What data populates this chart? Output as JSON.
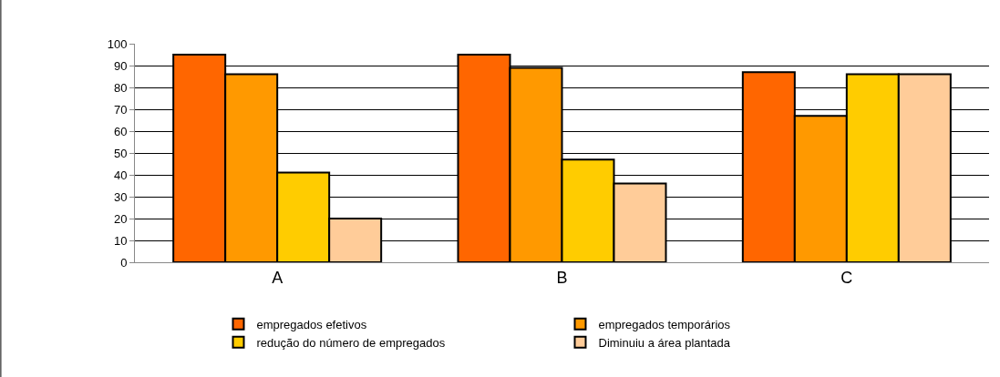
{
  "chart_data": {
    "type": "bar",
    "categories": [
      "A",
      "B",
      "C"
    ],
    "series": [
      {
        "name": "empregados efetivos",
        "color": "#ff6600",
        "values": [
          95,
          95,
          87
        ]
      },
      {
        "name": "empregados temporários",
        "color": "#ff9900",
        "values": [
          86,
          89,
          67
        ]
      },
      {
        "name": "redução do número de empregados",
        "color": "#ffcc00",
        "values": [
          41,
          47,
          86
        ]
      },
      {
        "name": "Diminuiu a área plantada",
        "color": "#ffcc99",
        "values": [
          20,
          36,
          86
        ]
      }
    ],
    "ylim": [
      0,
      100
    ],
    "yticks": [
      0,
      10,
      20,
      30,
      40,
      50,
      60,
      70,
      80,
      90,
      100
    ],
    "grid": "y",
    "legend": "bottom"
  }
}
